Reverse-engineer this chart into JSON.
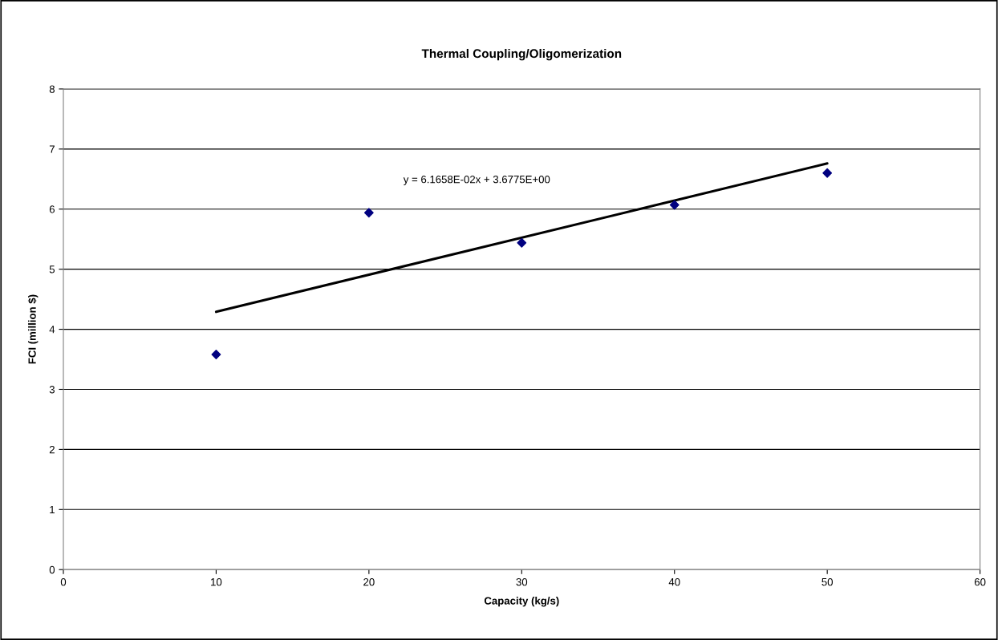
{
  "chart_data": {
    "type": "scatter",
    "title": "Thermal Coupling/Oligomerization",
    "xlabel": "Capacity (kg/s)",
    "ylabel": "FCI (million $)",
    "x": [
      10,
      20,
      30,
      40,
      50
    ],
    "series": [
      {
        "color": "#000080",
        "marker": "diamond",
        "values": [
          3.58,
          5.94,
          5.44,
          6.07,
          6.6
        ]
      },
      {
        "type": "line",
        "color": "#000000",
        "marker": "none",
        "line_style": "solid",
        "x": [
          10,
          50
        ],
        "values": [
          4.29,
          6.76
        ]
      }
    ],
    "annotations": [
      "y = 6.1658E-02x + 3.6775E+00"
    ],
    "xlim": [
      0,
      60
    ],
    "xticks": [
      0,
      10,
      20,
      30,
      40,
      50,
      60
    ],
    "ylim": [
      0,
      8
    ],
    "yticks": [
      0,
      1,
      2,
      3,
      4,
      5,
      6,
      7,
      8
    ],
    "grid": "y",
    "legend": false
  }
}
